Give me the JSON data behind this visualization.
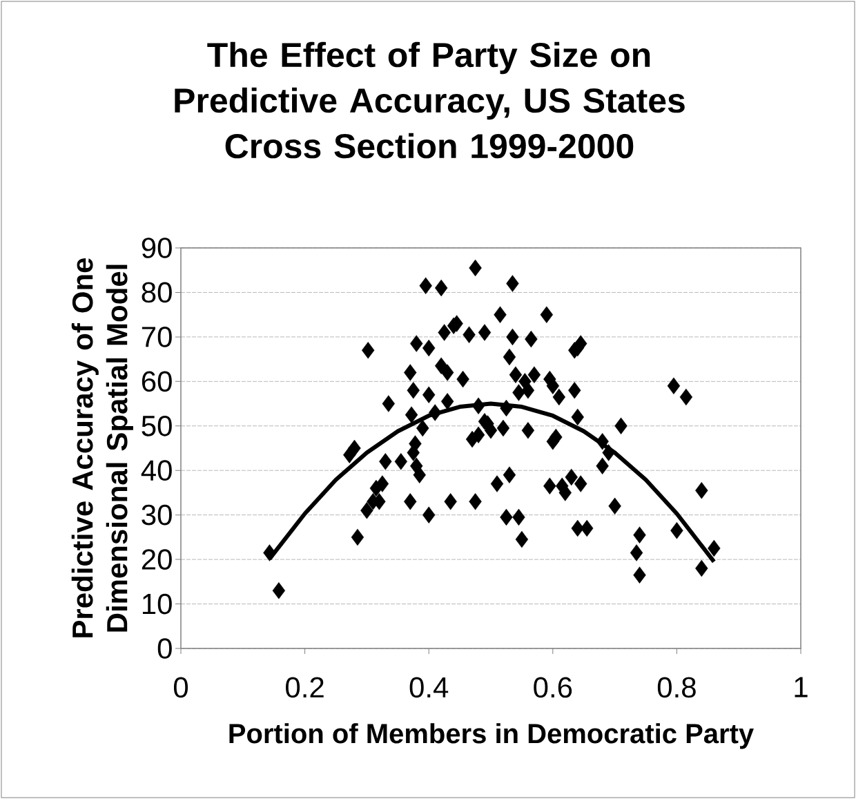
{
  "chart_data": {
    "type": "scatter",
    "title": "The Effect of Party Size on Predictive Accuracy, US States Cross Section 1999-2000",
    "xlabel": "Portion of Members in Democratic Party",
    "ylabel": "Predictive Accuracy of One Dimensional Spatial Model",
    "xlim": [
      0,
      1
    ],
    "xticks": [
      0,
      0.2,
      0.4,
      0.6,
      0.8,
      1
    ],
    "ylim": [
      0,
      90
    ],
    "yticks": [
      0,
      10,
      20,
      30,
      40,
      50,
      60,
      70,
      80,
      90
    ],
    "grid": "y",
    "series": [
      {
        "marker": "diamond",
        "color": "#000000",
        "x": [
          0.143,
          0.158,
          0.272,
          0.28,
          0.285,
          0.3,
          0.302,
          0.31,
          0.315,
          0.32,
          0.325,
          0.33,
          0.335,
          0.355,
          0.37,
          0.37,
          0.372,
          0.375,
          0.375,
          0.378,
          0.38,
          0.38,
          0.385,
          0.39,
          0.395,
          0.4,
          0.4,
          0.4,
          0.41,
          0.42,
          0.42,
          0.425,
          0.43,
          0.43,
          0.435,
          0.44,
          0.445,
          0.455,
          0.465,
          0.47,
          0.475,
          0.475,
          0.48,
          0.48,
          0.49,
          0.49,
          0.495,
          0.5,
          0.51,
          0.515,
          0.52,
          0.525,
          0.525,
          0.53,
          0.53,
          0.535,
          0.535,
          0.54,
          0.545,
          0.545,
          0.55,
          0.555,
          0.56,
          0.56,
          0.565,
          0.57,
          0.59,
          0.595,
          0.595,
          0.6,
          0.6,
          0.605,
          0.61,
          0.615,
          0.62,
          0.63,
          0.635,
          0.635,
          0.64,
          0.64,
          0.64,
          0.645,
          0.645,
          0.655,
          0.68,
          0.68,
          0.69,
          0.7,
          0.71,
          0.735,
          0.74,
          0.74,
          0.795,
          0.8,
          0.815,
          0.84,
          0.84,
          0.86
        ],
        "values": [
          21.5,
          13,
          43.5,
          45,
          25,
          31,
          67,
          33,
          36,
          33,
          37,
          42,
          55,
          42,
          62,
          33,
          52.5,
          58,
          44,
          46,
          41,
          68.5,
          39,
          49.5,
          81.5,
          67.5,
          57,
          30,
          53,
          63.5,
          81,
          71,
          62,
          55.5,
          33,
          72.5,
          73,
          60.5,
          70.5,
          47,
          85.5,
          33,
          54.5,
          48,
          71,
          51,
          50.5,
          49,
          37,
          75,
          49.5,
          54,
          29.5,
          65.5,
          39,
          82,
          70,
          61.5,
          57.5,
          29.5,
          24.5,
          60,
          58,
          49,
          69.5,
          61.5,
          75,
          60.5,
          36.5,
          59,
          46.5,
          47.5,
          56.5,
          36.5,
          35,
          38.5,
          67,
          58,
          52,
          67.5,
          27,
          68.5,
          37,
          27,
          46.5,
          41,
          44,
          32,
          50,
          21.5,
          25.5,
          16.5,
          59,
          26.5,
          56.5,
          35.5,
          18,
          22.5
        ]
      },
      {
        "type": "line",
        "marker": "none",
        "line_style": "solid",
        "color": "#000000",
        "x": [
          0.143,
          0.2,
          0.25,
          0.3,
          0.35,
          0.4,
          0.45,
          0.5,
          0.55,
          0.6,
          0.65,
          0.7,
          0.75,
          0.8,
          0.86
        ],
        "values": [
          20.1,
          30.3,
          37.9,
          44.0,
          48.8,
          52.3,
          54.3,
          55,
          54.3,
          52.3,
          48.8,
          44.0,
          37.9,
          30.3,
          19.5
        ]
      }
    ]
  }
}
